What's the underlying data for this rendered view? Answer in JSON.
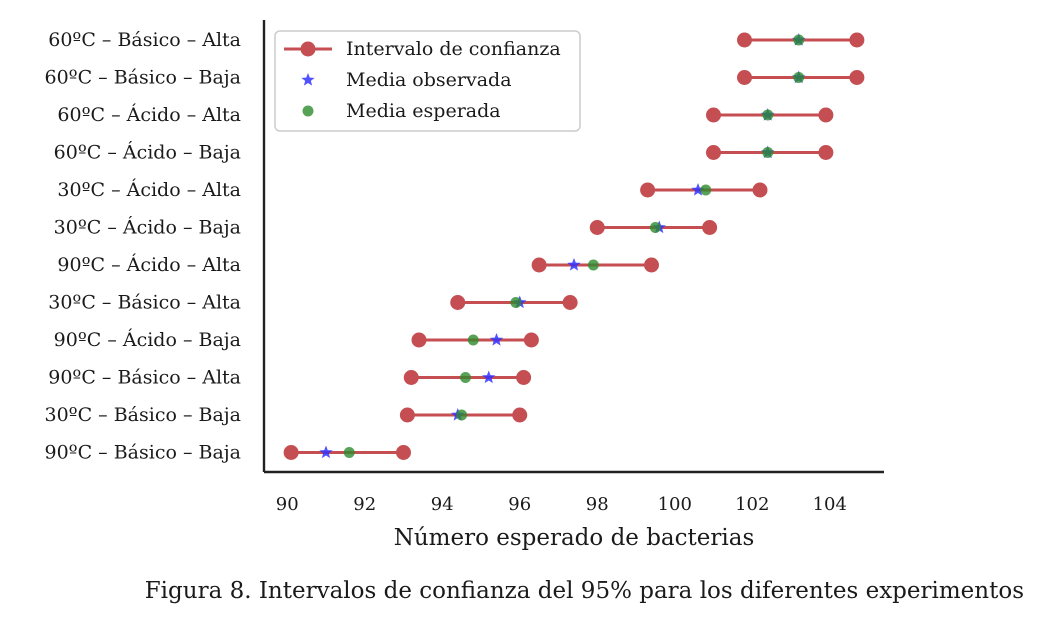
{
  "chart_data": {
    "type": "scatter",
    "xlabel": "Número esperado de bacterias",
    "xlim": [
      89.4,
      105.4
    ],
    "xticks": [
      90,
      92,
      94,
      96,
      98,
      100,
      102,
      104
    ],
    "grid": false,
    "legend_position": "top-left",
    "categories": [
      "60ºC – Básico – Alta",
      "60ºC – Básico – Baja",
      "60ºC – Ácido – Alta",
      "60ºC – Ácido – Baja",
      "30ºC – Ácido – Alta",
      "30ºC – Ácido – Baja",
      "90ºC – Ácido – Alta",
      "30ºC – Básico – Alta",
      "90ºC – Ácido – Baja",
      "90ºC – Básico – Alta",
      "30ºC – Básico – Baja",
      "90ºC – Básico – Baja"
    ],
    "series": [
      {
        "name": "Intervalo de confianza",
        "color": "#c44e52",
        "intervals": [
          [
            101.8,
            104.7
          ],
          [
            101.8,
            104.7
          ],
          [
            101.0,
            103.9
          ],
          [
            101.0,
            103.9
          ],
          [
            99.3,
            102.2
          ],
          [
            98.0,
            100.9
          ],
          [
            96.5,
            99.4
          ],
          [
            94.4,
            97.3
          ],
          [
            93.4,
            96.3
          ],
          [
            93.2,
            96.1
          ],
          [
            93.1,
            96.0
          ],
          [
            90.1,
            93.0
          ]
        ]
      },
      {
        "name": "Media observada",
        "color": "#3333ff",
        "values": [
          103.2,
          103.2,
          102.4,
          102.4,
          100.6,
          99.6,
          97.4,
          96.0,
          95.4,
          95.2,
          94.4,
          91.0
        ]
      },
      {
        "name": "Media esperada",
        "color": "#2e8b2e",
        "values": [
          103.2,
          103.2,
          102.4,
          102.4,
          100.8,
          99.5,
          97.9,
          95.9,
          94.8,
          94.6,
          94.5,
          91.6
        ]
      }
    ]
  },
  "caption": "Figura 8. Intervalos de confianza del 95% para los diferentes experimentos"
}
